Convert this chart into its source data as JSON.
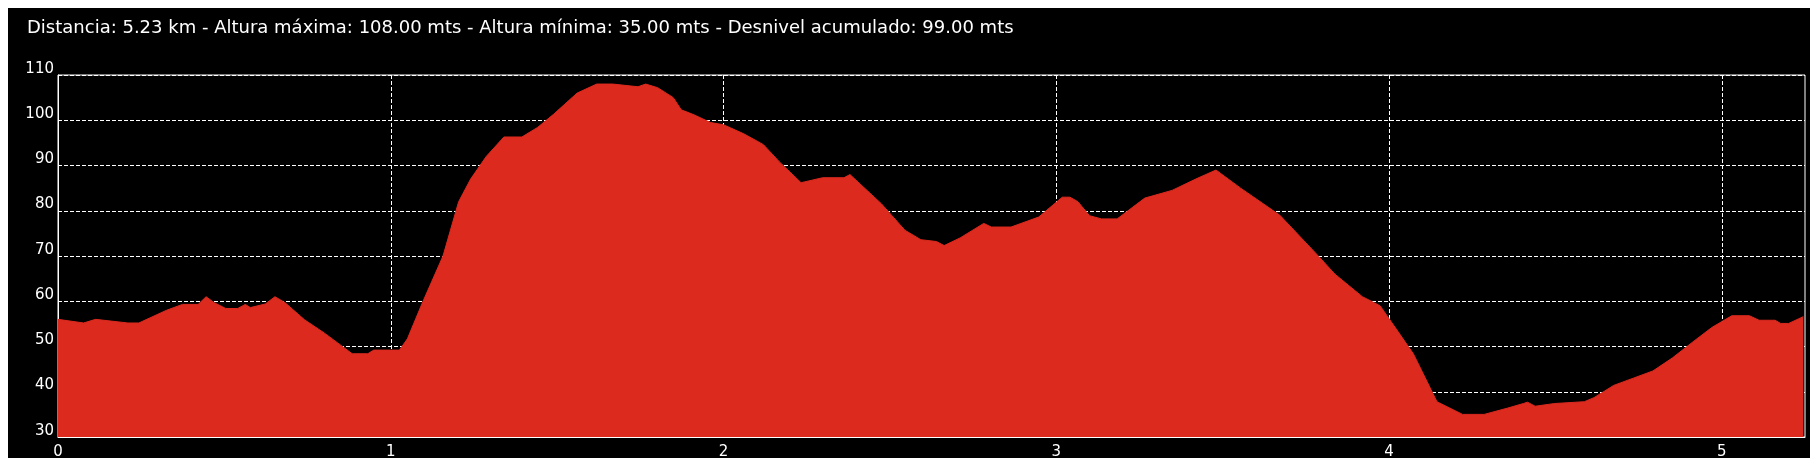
{
  "chart_data": {
    "type": "area",
    "title": "Distancia: 5.23 km - Altura máxima: 108.00 mts - Altura mínima: 35.00 mts - Desnivel acumulado: 99.00 mts",
    "x": [
      0,
      0.077,
      0.113,
      0.21,
      0.243,
      0.326,
      0.374,
      0.421,
      0.445,
      0.469,
      0.504,
      0.54,
      0.563,
      0.578,
      0.623,
      0.652,
      0.682,
      0.741,
      0.8,
      0.884,
      0.931,
      0.949,
      1.026,
      1.05,
      1.097,
      1.157,
      1.204,
      1.24,
      1.287,
      1.34,
      1.394,
      1.441,
      1.489,
      1.56,
      1.619,
      1.667,
      1.743,
      1.766,
      1.802,
      1.849,
      1.873,
      1.908,
      1.961,
      2.0,
      2.061,
      2.12,
      2.168,
      2.233,
      2.298,
      2.362,
      2.38,
      2.475,
      2.545,
      2.593,
      2.64,
      2.663,
      2.711,
      2.782,
      2.805,
      2.864,
      2.947,
      3.018,
      3.041,
      3.065,
      3.1,
      3.136,
      3.183,
      3.266,
      3.348,
      3.419,
      3.48,
      3.554,
      3.672,
      3.79,
      3.837,
      3.92,
      3.973,
      4.026,
      4.073,
      4.144,
      4.221,
      4.286,
      4.357,
      4.404,
      4.416,
      4.439,
      4.498,
      4.587,
      4.616,
      4.675,
      4.734,
      4.793,
      4.852,
      4.911,
      4.97,
      5.03,
      5.083,
      5.112,
      5.16,
      5.177,
      5.201,
      5.245
    ],
    "series": [
      {
        "color": "#dc2a1f",
        "values": [
          56,
          55.2,
          56,
          55.2,
          55.2,
          58,
          59.3,
          59.3,
          61,
          59.7,
          58.4,
          58.4,
          59.3,
          58.6,
          59.4,
          61,
          59.7,
          55.9,
          53,
          48.4,
          48.4,
          49.2,
          49.2,
          51.7,
          60,
          70,
          82,
          87,
          92,
          96.3,
          96.3,
          98.4,
          101.3,
          106,
          108,
          108,
          107.4,
          108,
          107.2,
          105,
          102.3,
          101.3,
          99.5,
          99,
          97,
          94.6,
          90.8,
          86.2,
          87.3,
          87.3,
          88,
          81.5,
          75.7,
          73.6,
          73.2,
          72.3,
          74,
          77.2,
          76.4,
          76.4,
          78.6,
          83,
          83,
          82,
          78.9,
          78.2,
          78.2,
          82.8,
          84.5,
          87,
          89,
          85,
          79,
          69.8,
          66,
          61,
          59,
          53.4,
          48.4,
          37.8,
          35,
          35,
          36.4,
          37.4,
          37.7,
          36.8,
          37.4,
          37.8,
          38.7,
          41.4,
          43,
          44.6,
          47.5,
          50.9,
          54.2,
          56.8,
          56.8,
          55.8,
          55.8,
          55.1,
          55.1,
          56.6
        ]
      }
    ],
    "xlim": [
      0,
      5.25
    ],
    "xticks": [
      0,
      1,
      2,
      3,
      4,
      5
    ],
    "ylim": [
      30,
      110
    ],
    "yticks": [
      30,
      40,
      50,
      60,
      70,
      80,
      90,
      100,
      110
    ],
    "grid": true
  }
}
